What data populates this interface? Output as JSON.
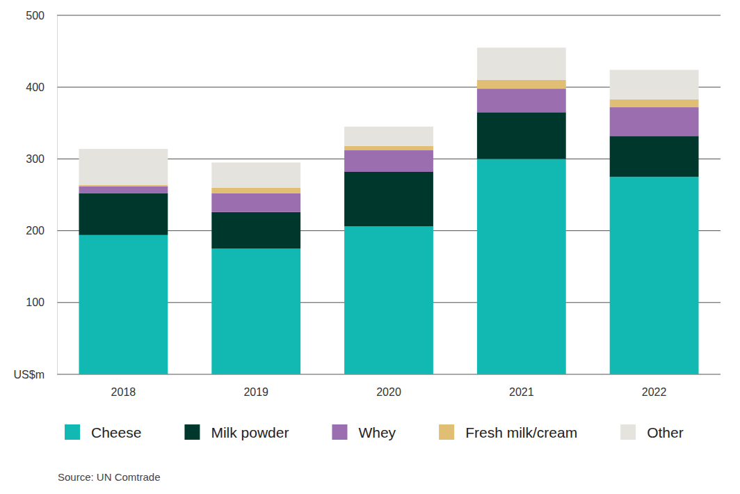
{
  "chart_data": {
    "type": "bar",
    "stacked": true,
    "grid": true,
    "legend": "bottom",
    "categories": [
      "2018",
      "2019",
      "2020",
      "2021",
      "2022"
    ],
    "series": [
      {
        "name": "Cheese",
        "color": "#12b9b3",
        "values": [
          194,
          175,
          206,
          300,
          275
        ]
      },
      {
        "name": "Milk powder",
        "color": "#00372c",
        "values": [
          58,
          51,
          76,
          65,
          57
        ]
      },
      {
        "name": "Whey",
        "color": "#9b6eb0",
        "values": [
          10,
          26,
          30,
          33,
          40
        ]
      },
      {
        "name": "Fresh milk/cream",
        "color": "#e0bf74",
        "values": [
          2,
          8,
          6,
          12,
          11
        ]
      },
      {
        "name": "Other",
        "color": "#e5e3de",
        "values": [
          50,
          35,
          27,
          45,
          41
        ]
      }
    ],
    "ylim": [
      0,
      500
    ],
    "yticks": [
      {
        "value": 0,
        "label": "US$m"
      },
      100,
      200,
      300,
      400,
      500
    ],
    "source": "Source: UN Comtrade"
  }
}
